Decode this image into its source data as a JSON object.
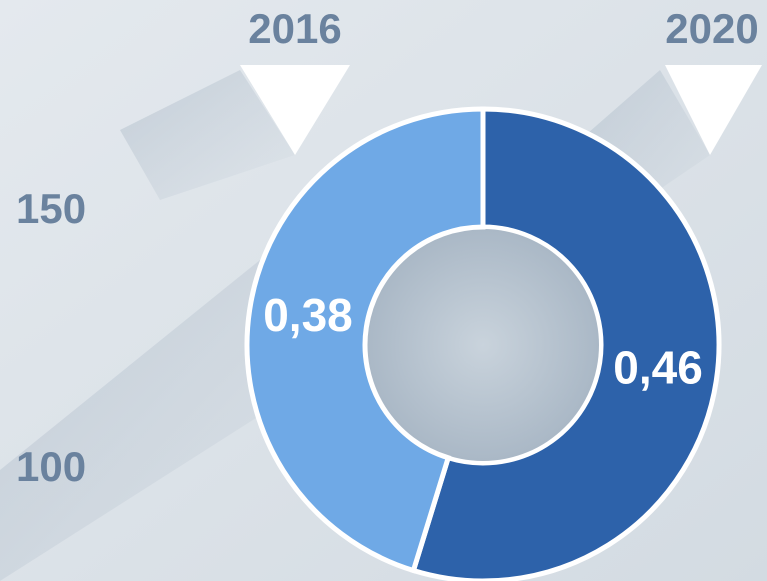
{
  "chart_data": {
    "type": "donut",
    "values": [
      0.46,
      0.38
    ],
    "value_labels": [
      "0,46",
      "0,38"
    ],
    "colors": [
      "#2d62aa",
      "#6fa9e6"
    ],
    "year_labels": [
      "2016",
      "2020"
    ],
    "annotations": [
      "150",
      "100"
    ]
  }
}
